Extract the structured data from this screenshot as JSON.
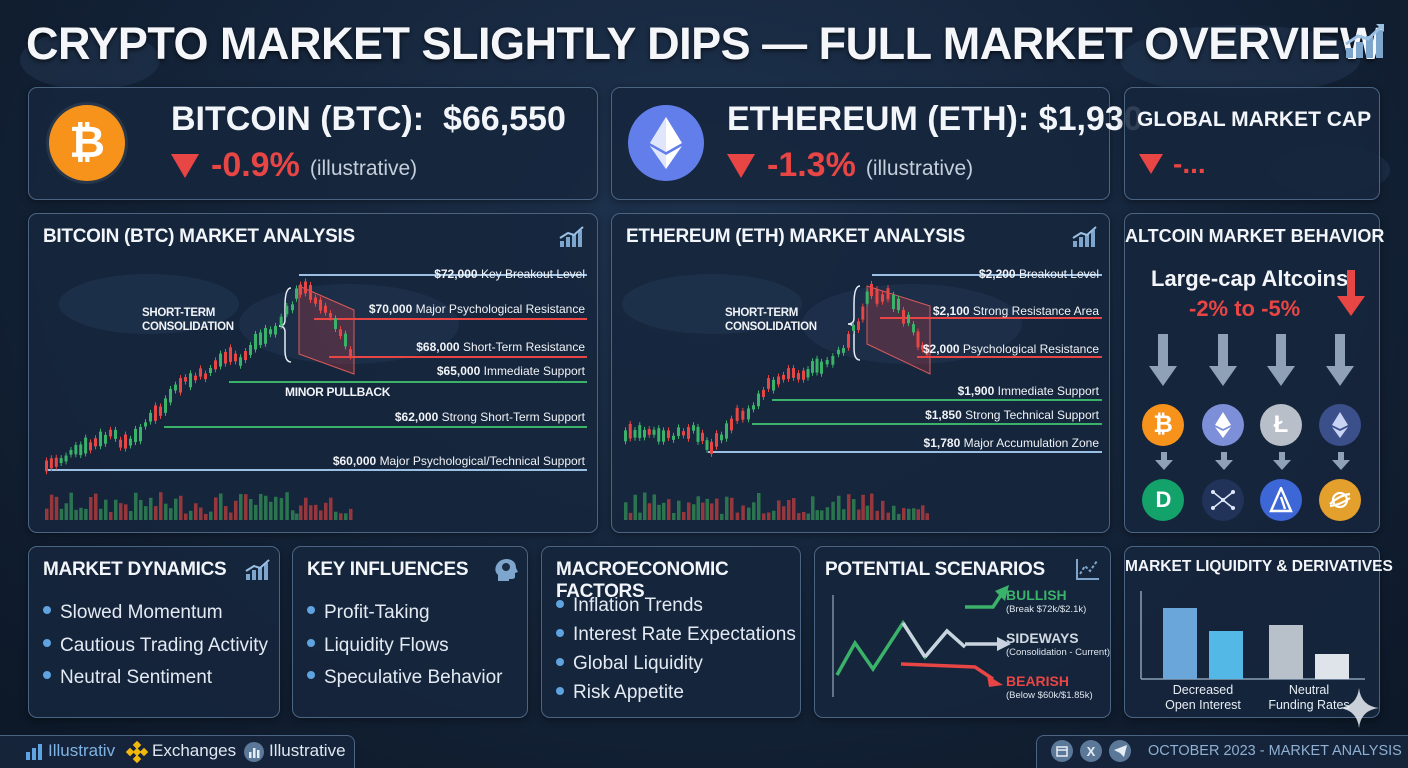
{
  "title": "CRYPTO MARKET SLIGHTLY DIPS — FULL MARKET OVERVIEW",
  "colors": {
    "up": "#3bb26a",
    "down": "#e84545",
    "accent": "#5fa4e0",
    "btc": "#f7931a",
    "eth": "#627eea"
  },
  "btc": {
    "name": "BITCOIN (BTC):",
    "price": "$66,550",
    "change": "-0.9%",
    "note": "(illustrative)",
    "icon": "bitcoin-icon"
  },
  "eth": {
    "name": "ETHEREUM (ETH):",
    "price": "$1,930",
    "change": "-1.3%",
    "note": "(illustrative)",
    "icon": "ethereum-icon"
  },
  "global": {
    "title": "GLOBAL MARKET CAP",
    "change": "-..."
  },
  "btc_analysis": {
    "title": "BITCOIN (BTC) MARKET ANALYSIS",
    "consolidation": "SHORT-TERM CONSOLIDATION",
    "pullback": "MINOR PULLBACK",
    "levels": [
      {
        "price": "$72,000",
        "label": "Key Breakout Level"
      },
      {
        "price": "$70,000",
        "label": "Major Psychological Resistance"
      },
      {
        "price": "$68,000",
        "label": "Short-Term Resistance"
      },
      {
        "price": "$65,000",
        "label": "Immediate Support"
      },
      {
        "price": "$62,000",
        "label": "Strong Short-Term Support"
      },
      {
        "price": "$60,000",
        "label": "Major Psychological/Technical Support"
      }
    ]
  },
  "eth_analysis": {
    "title": "ETHEREUM (ETH) MARKET ANALYSIS",
    "consolidation": "SHORT-TERM CONSOLIDATION",
    "levels": [
      {
        "price": "$2,200",
        "label": "Breakout Level"
      },
      {
        "price": "$2,100",
        "label": "Strong Resistance Area"
      },
      {
        "price": "$2,000",
        "label": "Psychological Resistance"
      },
      {
        "price": "$1,900",
        "label": "Immediate Support"
      },
      {
        "price": "$1,850",
        "label": "Strong Technical Support"
      },
      {
        "price": "$1,780",
        "label": "Major Accumulation Zone"
      }
    ]
  },
  "altcoin": {
    "title": "ALTCOIN MARKET BEHAVIOR",
    "label": "Large-cap Altcoins:",
    "range": "-2% to -5%",
    "top_icons": [
      "bitcoin-icon",
      "ethereum-icon",
      "litecoin-icon",
      "ethereum-classic-icon"
    ],
    "bottom_icons": [
      "dash-icon",
      "network-icon",
      "arbitrum-icon",
      "stellar-icon"
    ]
  },
  "dynamics": {
    "title": "MARKET DYNAMICS",
    "items": [
      "Slowed Momentum",
      "Cautious Trading Activity",
      "Neutral Sentiment"
    ]
  },
  "influences": {
    "title": "KEY INFLUENCES",
    "items": [
      "Profit-Taking",
      "Liquidity Flows",
      "Speculative Behavior"
    ]
  },
  "macro": {
    "title": "MACROECONOMIC FACTORS",
    "items": [
      "Inflation Trends",
      "Interest Rate Expectations",
      "Global Liquidity",
      "Risk Appetite"
    ]
  },
  "scenarios": {
    "title": "POTENTIAL SCENARIOS",
    "bullish": "BULLISH",
    "bullish_note": "(Break $72k/$2.1k)",
    "sideways": "SIDEWAYS",
    "sideways_note": "(Consolidation - Current)",
    "bearish": "BEARISH",
    "bearish_note": "(Below $60k/$1.85k)"
  },
  "liquidity": {
    "title": "MARKET LIQUIDITY & DERIVATIVES",
    "group1": "Decreased\nOpen Interest",
    "group2": "Neutral\nFunding Rates"
  },
  "footer": {
    "item1": "Illustrativ",
    "item2": "Exchanges",
    "item3": "Illustrative",
    "date": "OCTOBER 2023 - MARKET ANALYSIS"
  }
}
